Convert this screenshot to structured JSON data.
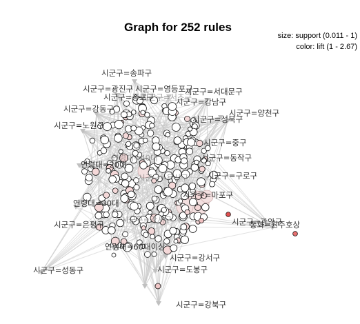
{
  "chart_data": {
    "type": "network",
    "title": "Graph for 252 rules",
    "legend": {
      "size": "size: support (0.011 - 1)",
      "color": "color: lift (1 - 2.67)"
    },
    "item_labels": [
      {
        "id": "songpa",
        "text": "시군구=송파구"
      },
      {
        "id": "gwangjin",
        "text": "시군구=광진구"
      },
      {
        "id": "yeongdeungpo",
        "text": "시군구=영등포구"
      },
      {
        "id": "seodaemun",
        "text": "시군구=서대문구"
      },
      {
        "id": "seocho",
        "text": "시군구=서초구"
      },
      {
        "id": "jongno",
        "text": "시군구=종로구"
      },
      {
        "id": "gangnam",
        "text": "시군구=강남구"
      },
      {
        "id": "yangcheon",
        "text": "시군구=양천구"
      },
      {
        "id": "gangdong",
        "text": "시군구=강동구"
      },
      {
        "id": "seongbuk",
        "text": "시군구=성북구"
      },
      {
        "id": "nowon",
        "text": "시군구=노원구"
      },
      {
        "id": "jung",
        "text": "시군구=중구"
      },
      {
        "id": "dongjak",
        "text": "시군구=동작구"
      },
      {
        "id": "age40",
        "text": "연령대=40대"
      },
      {
        "id": "age20",
        "text": "연령대=20대"
      },
      {
        "id": "guro",
        "text": "시군구=구로구"
      },
      {
        "id": "yongsan",
        "text": "시군구=용산구"
      },
      {
        "id": "mapo",
        "text": "시군구=마포구"
      },
      {
        "id": "age30",
        "text": "연령대=30대"
      },
      {
        "id": "eunpyeong",
        "text": "시군구=은평구"
      },
      {
        "id": "gangseo_a",
        "text": "시군구=강서구"
      },
      {
        "id": "gwanak",
        "text": "시군구=관악구"
      },
      {
        "id": "currency",
        "text": "통화=원주호상"
      },
      {
        "id": "age60",
        "text": "연령대=60대이상"
      },
      {
        "id": "gangseo",
        "text": "시군구=강서구"
      },
      {
        "id": "dobong",
        "text": "시군구=도봉구"
      },
      {
        "id": "seongdong",
        "text": "시군구=성동구"
      },
      {
        "id": "gangbuk",
        "text": "시군구=강북구"
      }
    ],
    "rule_count": 252,
    "size_range": [
      0.011,
      1
    ],
    "lift_range": [
      1,
      2.67
    ]
  }
}
